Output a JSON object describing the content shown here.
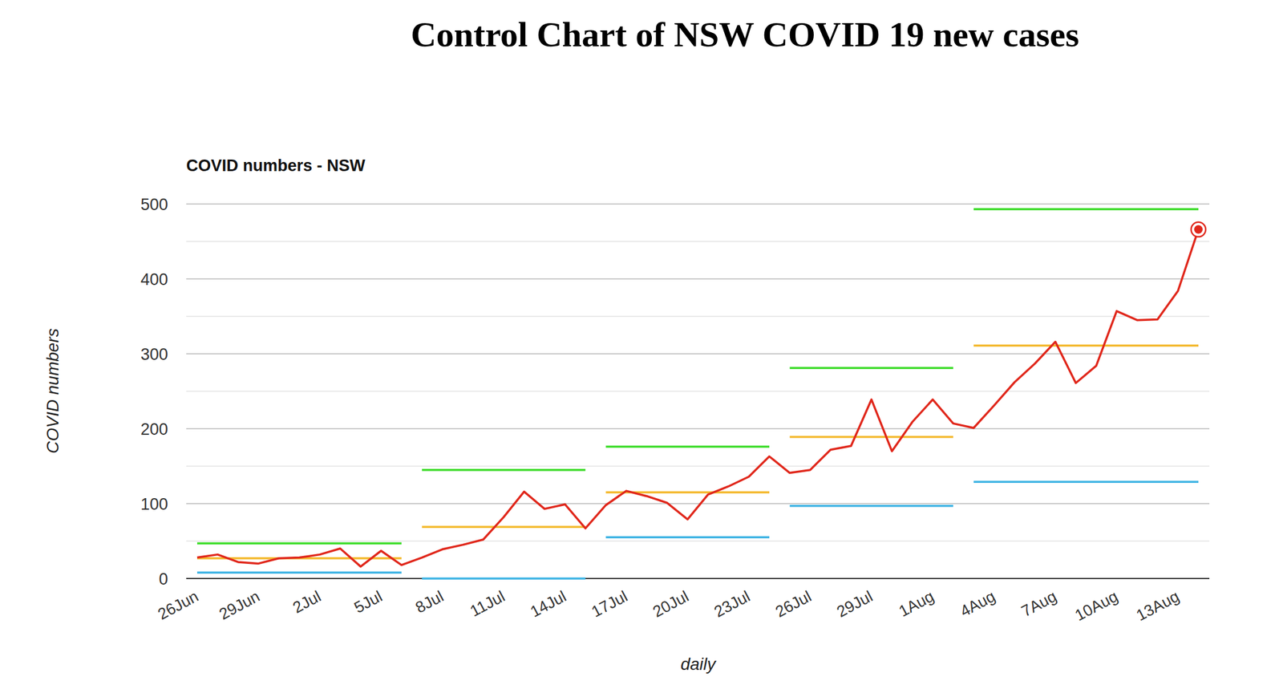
{
  "chart_data": {
    "type": "line",
    "title": "Control Chart of NSW COVID 19 new cases",
    "subtitle": "COVID numbers - NSW",
    "x_label": "daily",
    "y_label": "COVID numbers",
    "categories": [
      "26Jun",
      null,
      null,
      "29Jun",
      null,
      null,
      "2Jul",
      null,
      null,
      "5Jul",
      null,
      null,
      "8Jul",
      null,
      null,
      "11Jul",
      null,
      null,
      "14Jul",
      null,
      null,
      "17Jul",
      null,
      null,
      "20Jul",
      null,
      null,
      "23Jul",
      null,
      null,
      "26Jul",
      null,
      null,
      "29Jul",
      null,
      null,
      "1Aug",
      null,
      null,
      "4Aug",
      null,
      null,
      "7Aug",
      null,
      null,
      "10Aug",
      null,
      null,
      "13Aug",
      null
    ],
    "series": [
      {
        "type": "line",
        "color": "#e0271b",
        "marker": "last",
        "values": [
          28,
          32,
          22,
          20,
          27,
          28,
          32,
          40,
          16,
          37,
          18,
          28,
          39,
          45,
          52,
          82,
          116,
          93,
          99,
          67,
          98,
          117,
          110,
          101,
          79,
          112,
          123,
          136,
          163,
          141,
          145,
          172,
          177,
          239,
          170,
          209,
          239,
          207,
          201,
          231,
          262,
          287,
          316,
          261,
          284,
          357,
          345,
          346,
          384,
          466
        ]
      },
      {
        "type": "segments",
        "color": "#3ddc2a",
        "values": [
          47,
          47,
          47,
          47,
          47,
          47,
          47,
          47,
          47,
          47,
          47,
          145,
          145,
          145,
          145,
          145,
          145,
          145,
          145,
          145,
          176,
          176,
          176,
          176,
          176,
          176,
          176,
          176,
          176,
          281,
          281,
          281,
          281,
          281,
          281,
          281,
          281,
          281,
          493,
          493,
          493,
          493,
          493,
          493,
          493,
          493,
          493,
          493,
          493,
          493
        ]
      },
      {
        "type": "segments",
        "color": "#f4b92e",
        "values": [
          27,
          27,
          27,
          27,
          27,
          27,
          27,
          27,
          27,
          27,
          27,
          69,
          69,
          69,
          69,
          69,
          69,
          69,
          69,
          69,
          115,
          115,
          115,
          115,
          115,
          115,
          115,
          115,
          115,
          189,
          189,
          189,
          189,
          189,
          189,
          189,
          189,
          189,
          311,
          311,
          311,
          311,
          311,
          311,
          311,
          311,
          311,
          311,
          311,
          311
        ]
      },
      {
        "type": "segments",
        "color": "#3fb4e4",
        "values": [
          8,
          8,
          8,
          8,
          8,
          8,
          8,
          8,
          8,
          8,
          8,
          0,
          0,
          0,
          0,
          0,
          0,
          0,
          0,
          0,
          55,
          55,
          55,
          55,
          55,
          55,
          55,
          55,
          55,
          97,
          97,
          97,
          97,
          97,
          97,
          97,
          97,
          97,
          129,
          129,
          129,
          129,
          129,
          129,
          129,
          129,
          129,
          129,
          129,
          129
        ]
      }
    ],
    "ylim": [
      0,
      500
    ],
    "yticks": [
      0,
      100,
      200,
      300,
      400,
      500
    ],
    "grid": true
  }
}
